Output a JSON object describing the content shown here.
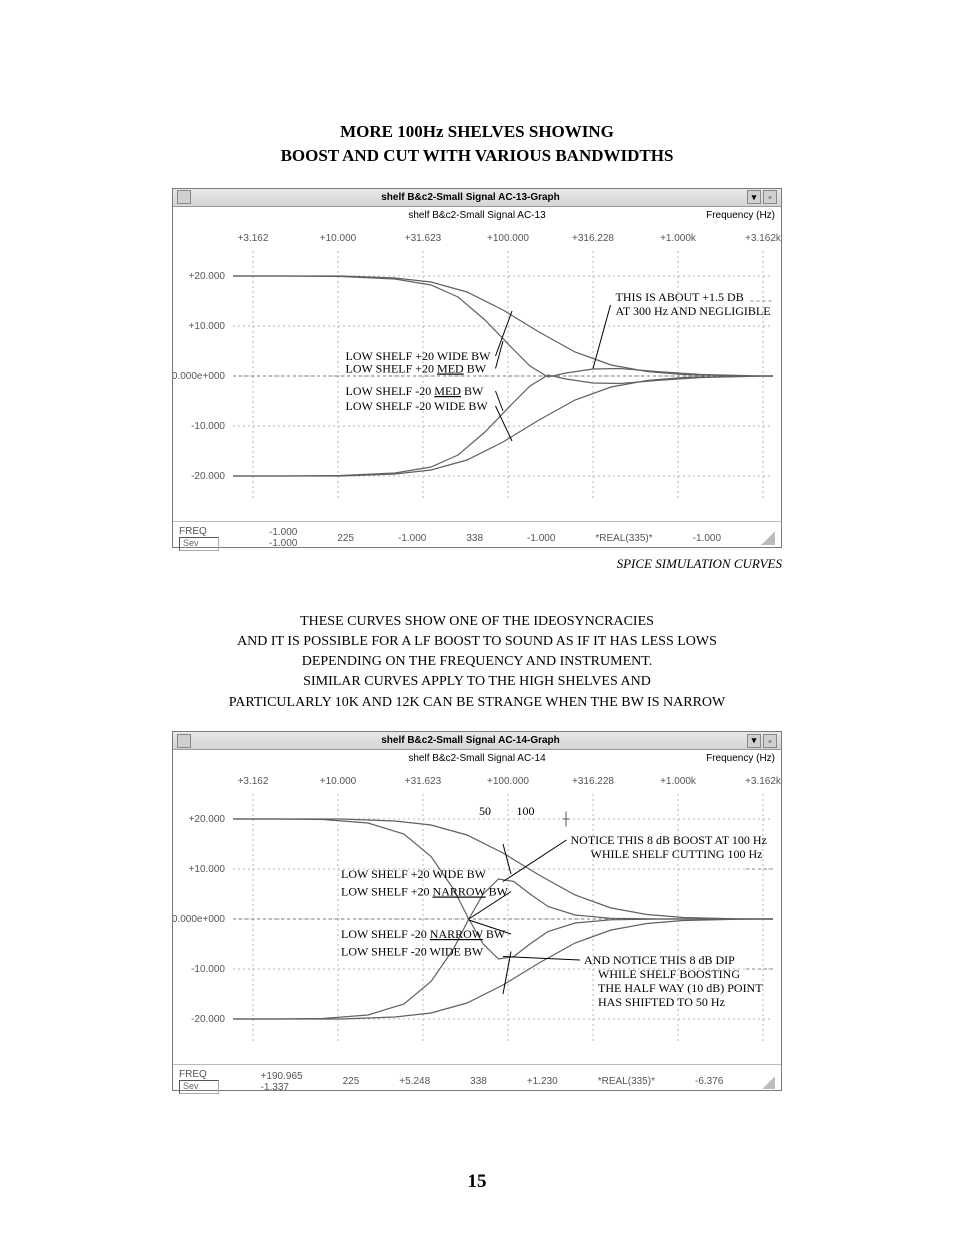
{
  "mainTitle": {
    "line1": "MORE 100Hz SHELVES SHOWING",
    "line2": "BOOST AND CUT WITH  VARIOUS BANDWIDTHS"
  },
  "captionTop": "SPICE SIMULATION CURVES",
  "midText": {
    "l1": "THESE CURVES SHOW ONE OF THE IDEOSYNCRACIES",
    "l2": "AND IT IS POSSIBLE FOR A LF BOOST TO SOUND AS IF IT HAS LESS LOWS",
    "l3": "DEPENDING ON THE FREQUENCY AND INSTRUMENT.",
    "l4": "SIMILAR CURVES APPLY TO THE HIGH SHELVES AND",
    "l5": "PARTICULARLY 10K AND 12K CAN BE STRANGE WHEN THE BW IS NARROW"
  },
  "pageNumber": "15",
  "graph1": {
    "windowTitle": "shelf B&c2-Small Signal AC-13-Graph",
    "subtitle": "shelf B&c2-Small Signal AC-13",
    "yunit": "Frequency  (Hz)",
    "topTicks": [
      "+3.162",
      "+10.000",
      "+31.623",
      "+100.000",
      "+316.228",
      "+1.000k",
      "+3.162k"
    ],
    "yTicks": [
      "+20.000",
      "+10.000",
      "+0.000e+000",
      "-10.000",
      "-20.000"
    ],
    "footer": {
      "label": "FREQ",
      "c1a": "-1.000",
      "c1b": "-1.000",
      "c2": "225",
      "c3": "-1.000",
      "c4": "338",
      "c5": "-1.000",
      "c6": "*REAL(335)*",
      "c7": "-1.000",
      "inset": "Sev"
    },
    "labels": {
      "l1": "LOW SHELF +20 WIDE BW",
      "l2": "LOW SHELF +20 MED BW",
      "l3": "LOW SHELF -20 MED BW",
      "l4": "LOW SHELF -20 WIDE BW"
    },
    "boxAnno": {
      "l1": "THIS IS ABOUT +1.5 DB",
      "l2": "AT 300 Hz AND NEGLIGIBLE"
    },
    "colors": {
      "grid": "#b5b5b5",
      "axis": "#777777",
      "curve": "#606060",
      "anno": "#000000",
      "bg": "#ffffff"
    },
    "yRange": [
      -25,
      25
    ],
    "curves": {
      "wide_p20": [
        [
          0,
          20.0
        ],
        [
          60,
          20.0
        ],
        [
          120,
          20.0
        ],
        [
          180,
          19.6
        ],
        [
          220,
          18.8
        ],
        [
          260,
          16.8
        ],
        [
          300,
          13.2
        ],
        [
          340,
          8.8
        ],
        [
          380,
          4.8
        ],
        [
          420,
          2.2
        ],
        [
          460,
          0.9
        ],
        [
          500,
          0.3
        ],
        [
          560,
          0.05
        ],
        [
          600,
          0
        ]
      ],
      "med_p20": [
        [
          0,
          20.0
        ],
        [
          60,
          20.0
        ],
        [
          120,
          19.9
        ],
        [
          180,
          19.4
        ],
        [
          220,
          18.2
        ],
        [
          250,
          15.8
        ],
        [
          280,
          11.2
        ],
        [
          310,
          5.6
        ],
        [
          330,
          2.0
        ],
        [
          350,
          -0.2
        ],
        [
          370,
          0.6
        ],
        [
          400,
          1.4
        ],
        [
          430,
          1.5
        ],
        [
          470,
          0.9
        ],
        [
          520,
          0.3
        ],
        [
          580,
          0.05
        ],
        [
          600,
          0
        ]
      ],
      "med_m20": [
        [
          0,
          -20.0
        ],
        [
          60,
          -20.0
        ],
        [
          120,
          -19.9
        ],
        [
          180,
          -19.4
        ],
        [
          220,
          -18.2
        ],
        [
          250,
          -15.8
        ],
        [
          280,
          -11.2
        ],
        [
          310,
          -5.6
        ],
        [
          330,
          -2.0
        ],
        [
          350,
          0.2
        ],
        [
          370,
          -0.6
        ],
        [
          400,
          -1.4
        ],
        [
          430,
          -1.5
        ],
        [
          470,
          -0.9
        ],
        [
          520,
          -0.3
        ],
        [
          580,
          -0.05
        ],
        [
          600,
          0
        ]
      ],
      "wide_m20": [
        [
          0,
          -20.0
        ],
        [
          60,
          -20.0
        ],
        [
          120,
          -20.0
        ],
        [
          180,
          -19.6
        ],
        [
          220,
          -18.8
        ],
        [
          260,
          -16.8
        ],
        [
          300,
          -13.2
        ],
        [
          340,
          -8.8
        ],
        [
          380,
          -4.8
        ],
        [
          420,
          -2.2
        ],
        [
          460,
          -0.9
        ],
        [
          500,
          -0.3
        ],
        [
          560,
          -0.05
        ],
        [
          600,
          0
        ]
      ]
    }
  },
  "graph2": {
    "windowTitle": "shelf B&c2-Small Signal AC-14-Graph",
    "subtitle": "shelf B&c2-Small Signal AC-14",
    "yunit": "Frequency  (Hz)",
    "topTicks": [
      "+3.162",
      "+10.000",
      "+31.623",
      "+100.000",
      "+316.228",
      "+1.000k",
      "+3.162k"
    ],
    "yTicks": [
      "+20.000",
      "+10.000",
      "+0.000e+000",
      "-10.000",
      "-20.000"
    ],
    "topNumbers": {
      "n1": "50",
      "n2": "100"
    },
    "footer": {
      "label": "FREQ",
      "c1a": "+190.965",
      "c1b": "-1.337",
      "c2": "225",
      "c3": "+5.248",
      "c4": "338",
      "c5": "+1.230",
      "c6": "*REAL(335)*",
      "c7": "-6.376",
      "inset": "Sev"
    },
    "labels": {
      "l1": "LOW SHELF +20 WIDE BW",
      "l2": "LOW SHELF +20 NARROW BW",
      "l3": "LOW SHELF -20 NARROW BW",
      "l4": "LOW SHELF -20 WIDE BW"
    },
    "boxAnnoTop": {
      "l1": "NOTICE THIS 8 dB BOOST AT 100 Hz",
      "l2": "WHILE SHELF CUTTING 100 Hz"
    },
    "boxAnnoBottom": {
      "l1": "AND NOTICE THIS 8 dB DIP",
      "l2": "WHILE SHELF BOOSTING",
      "l3": "THE HALF WAY (10 dB) POINT",
      "l4": "HAS SHIFTED TO 50 Hz"
    },
    "colors": {
      "grid": "#b5b5b5",
      "axis": "#777777",
      "curve": "#606060",
      "anno": "#000000",
      "bg": "#ffffff"
    },
    "yRange": [
      -25,
      25
    ],
    "curves": {
      "wide_p20": [
        [
          0,
          20.0
        ],
        [
          60,
          20.0
        ],
        [
          120,
          20.0
        ],
        [
          180,
          19.6
        ],
        [
          220,
          18.8
        ],
        [
          260,
          16.8
        ],
        [
          300,
          13.2
        ],
        [
          340,
          8.8
        ],
        [
          380,
          4.8
        ],
        [
          420,
          2.2
        ],
        [
          460,
          0.9
        ],
        [
          500,
          0.3
        ],
        [
          560,
          0.05
        ],
        [
          600,
          0
        ]
      ],
      "nar_p20": [
        [
          0,
          20.0
        ],
        [
          50,
          20.0
        ],
        [
          100,
          19.9
        ],
        [
          150,
          19.2
        ],
        [
          190,
          17.0
        ],
        [
          220,
          12.5
        ],
        [
          245,
          6.0
        ],
        [
          262,
          0
        ],
        [
          278,
          -5.0
        ],
        [
          295,
          -8.0
        ],
        [
          312,
          -7.5
        ],
        [
          330,
          -5.0
        ],
        [
          350,
          -2.5
        ],
        [
          380,
          -0.8
        ],
        [
          420,
          -0.15
        ],
        [
          480,
          0
        ],
        [
          600,
          0
        ]
      ],
      "nar_m20": [
        [
          0,
          -20.0
        ],
        [
          50,
          -20.0
        ],
        [
          100,
          -19.9
        ],
        [
          150,
          -19.2
        ],
        [
          190,
          -17.0
        ],
        [
          220,
          -12.5
        ],
        [
          245,
          -6.0
        ],
        [
          262,
          0
        ],
        [
          278,
          5.0
        ],
        [
          295,
          8.0
        ],
        [
          312,
          7.5
        ],
        [
          330,
          5.0
        ],
        [
          350,
          2.5
        ],
        [
          380,
          0.8
        ],
        [
          420,
          0.15
        ],
        [
          480,
          0
        ],
        [
          600,
          0
        ]
      ],
      "wide_m20": [
        [
          0,
          -20.0
        ],
        [
          60,
          -20.0
        ],
        [
          120,
          -20.0
        ],
        [
          180,
          -19.6
        ],
        [
          220,
          -18.8
        ],
        [
          260,
          -16.8
        ],
        [
          300,
          -13.2
        ],
        [
          340,
          -8.8
        ],
        [
          380,
          -4.8
        ],
        [
          420,
          -2.2
        ],
        [
          460,
          -0.9
        ],
        [
          500,
          -0.3
        ],
        [
          560,
          -0.05
        ],
        [
          600,
          0
        ]
      ]
    }
  }
}
